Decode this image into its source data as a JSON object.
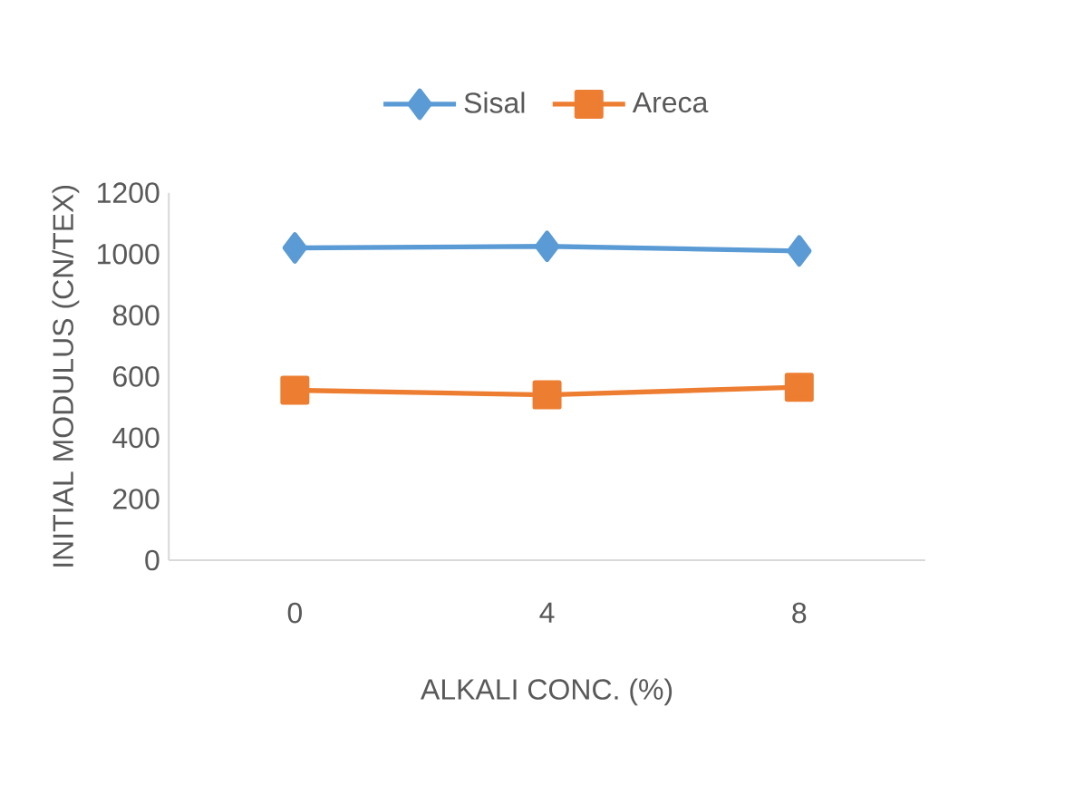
{
  "chart_data": {
    "type": "line",
    "xlabel": "ALKALI CONC. (%)",
    "ylabel": "INITIAL MODULUS (CN/TEX)",
    "categories": [
      "0",
      "4",
      "8"
    ],
    "series": [
      {
        "name": "Sisal",
        "color": "#5b9bd5",
        "marker": "diamond",
        "values": [
          1020,
          1025,
          1010
        ]
      },
      {
        "name": "Areca",
        "color": "#ed7d31",
        "marker": "square",
        "values": [
          555,
          540,
          565
        ]
      }
    ],
    "ylim": [
      0,
      1200
    ],
    "yticks": [
      0,
      200,
      400,
      600,
      800,
      1000,
      1200
    ],
    "grid": false,
    "legend": "top"
  }
}
